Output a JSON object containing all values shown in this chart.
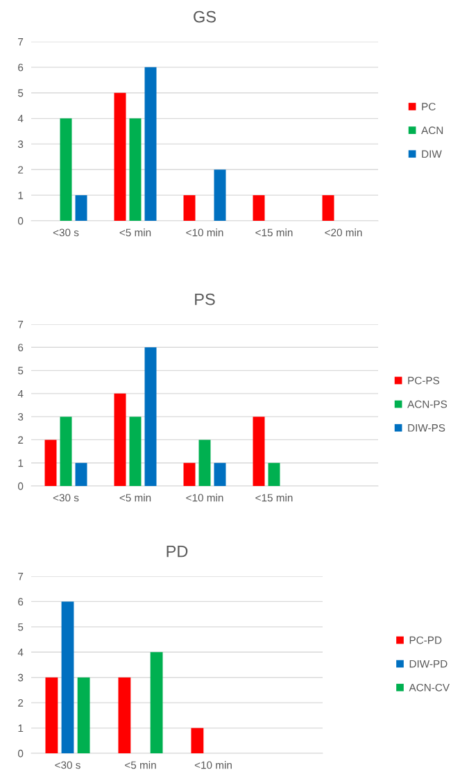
{
  "chart_data": [
    {
      "type": "bar",
      "title": "GS",
      "categories": [
        "<30 s",
        "<5 min",
        "<10 min",
        "<15 min",
        "<20 min"
      ],
      "ylim": [
        0,
        7
      ],
      "yticks": [
        0,
        1,
        2,
        3,
        4,
        5,
        6,
        7
      ],
      "grid": "y",
      "legend": "right",
      "series": [
        {
          "name": "PC",
          "color": "#ff0000",
          "values": [
            null,
            5,
            1,
            1,
            1
          ]
        },
        {
          "name": "ACN",
          "color": "#00b050",
          "values": [
            4,
            4,
            null,
            null,
            null
          ]
        },
        {
          "name": "DIW",
          "color": "#0070c0",
          "values": [
            1,
            6,
            2,
            null,
            null
          ]
        }
      ]
    },
    {
      "type": "bar",
      "title": "PS",
      "categories": [
        "<30 s",
        "<5 min",
        "<10 min",
        "<15 min",
        null
      ],
      "ylim": [
        0,
        7
      ],
      "yticks": [
        0,
        1,
        2,
        3,
        4,
        5,
        6,
        7
      ],
      "grid": "y",
      "legend": "right",
      "series": [
        {
          "name": "PC-PS",
          "color": "#ff0000",
          "values": [
            2,
            4,
            1,
            3,
            null
          ]
        },
        {
          "name": "ACN-PS",
          "color": "#00b050",
          "values": [
            3,
            3,
            2,
            1,
            null
          ]
        },
        {
          "name": "DIW-PS",
          "color": "#0070c0",
          "values": [
            1,
            6,
            1,
            null,
            null
          ]
        }
      ]
    },
    {
      "type": "bar",
      "title": "PD",
      "categories": [
        "<30 s",
        "<5 min",
        "<10 min",
        null
      ],
      "ylim": [
        0,
        7
      ],
      "yticks": [
        0,
        1,
        2,
        3,
        4,
        5,
        6,
        7
      ],
      "grid": "y",
      "legend": "right",
      "series": [
        {
          "name": "PC-PD",
          "color": "#ff0000",
          "values": [
            3,
            3,
            1,
            null
          ]
        },
        {
          "name": "DIW-PD",
          "color": "#0070c0",
          "values": [
            6,
            null,
            null,
            null
          ]
        },
        {
          "name": "ACN-CV",
          "color": "#00b050",
          "values": [
            3,
            4,
            null,
            null
          ]
        }
      ]
    }
  ]
}
